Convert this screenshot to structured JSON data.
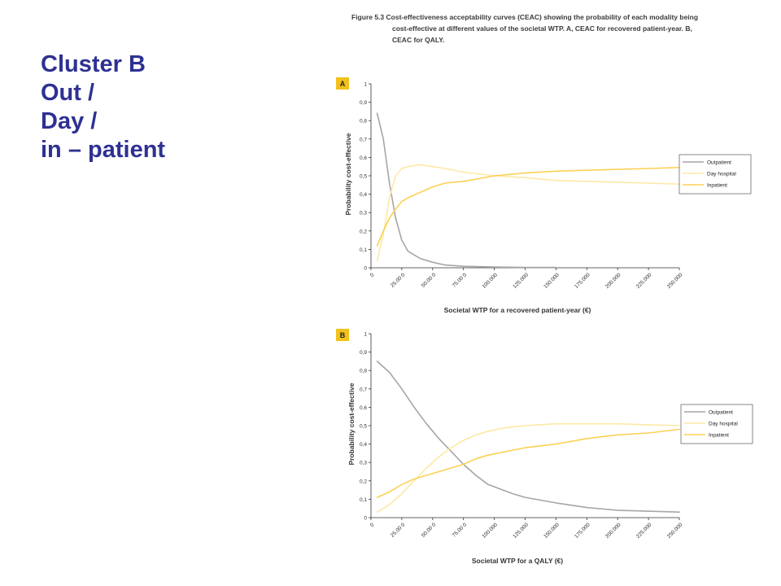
{
  "slide": {
    "title_lines": [
      "Cluster B",
      "Out /",
      "Day /",
      "in – patient"
    ]
  },
  "figure": {
    "label": "Figure 5.3",
    "caption_line1": "Cost-effectiveness acceptability curves (CEAC) showing the probability of each modality being",
    "caption_line2": "cost-effective at different values of the societal WTP. A, CEAC for recovered patient-year. B,",
    "caption_line3": "CEAC for QALY."
  },
  "colors": {
    "title": "#2e3192",
    "outpatient": "#a6a6a6",
    "day_hospital": "#fde9a6",
    "inpatient": "#fcd054",
    "panel_badge": "#f2c11b",
    "axis": "#333333"
  },
  "chart_data": [
    {
      "type": "line",
      "panel": "A",
      "ylabel": "Probability cost-effective",
      "xlabel": "Societal WTP for a recovered patient-year (€)",
      "yticks": [
        "0",
        "0,1",
        "0,2",
        "0,3",
        "0,4",
        "0,5",
        "0,6",
        "0,7",
        "0,8",
        "0,9",
        "1"
      ],
      "xticks": [
        "0",
        "25.00 0",
        "50.00 0",
        "75.00 0",
        "100.000",
        "125.000",
        "150.000",
        "175.000",
        "200.000",
        "225.000",
        "250.000"
      ],
      "ylim": [
        0,
        1
      ],
      "xlim": [
        0,
        250000
      ],
      "legend_position": "right",
      "series": [
        {
          "name": "Outpatient",
          "color": "#a6a6a6",
          "x": [
            5000,
            10000,
            15000,
            20000,
            25000,
            30000,
            40000,
            50000,
            60000,
            75000,
            100000,
            125000,
            150000
          ],
          "y": [
            0.84,
            0.7,
            0.46,
            0.27,
            0.15,
            0.09,
            0.05,
            0.03,
            0.015,
            0.008,
            0.004,
            0.002,
            0.002
          ]
        },
        {
          "name": "Day hospital",
          "color": "#fde9a6",
          "x": [
            5000,
            10000,
            15000,
            20000,
            25000,
            30000,
            40000,
            50000,
            60000,
            75000,
            100000,
            125000,
            150000,
            175000,
            200000,
            225000,
            250000
          ],
          "y": [
            0.04,
            0.18,
            0.38,
            0.5,
            0.54,
            0.55,
            0.56,
            0.55,
            0.54,
            0.52,
            0.5,
            0.49,
            0.475,
            0.47,
            0.465,
            0.46,
            0.455
          ]
        },
        {
          "name": "Inpatient",
          "color": "#fcd054",
          "x": [
            5000,
            10000,
            15000,
            20000,
            25000,
            30000,
            40000,
            50000,
            60000,
            75000,
            100000,
            125000,
            150000,
            175000,
            200000,
            225000,
            250000
          ],
          "y": [
            0.12,
            0.2,
            0.27,
            0.32,
            0.36,
            0.38,
            0.41,
            0.44,
            0.46,
            0.47,
            0.5,
            0.515,
            0.525,
            0.53,
            0.535,
            0.54,
            0.545
          ]
        }
      ]
    },
    {
      "type": "line",
      "panel": "B",
      "ylabel": "Probability cost-effective",
      "xlabel": "Societal WTP for a QALY (€)",
      "yticks": [
        "0",
        "0,1",
        "0,2",
        "0,3",
        "0,4",
        "0,5",
        "0,6",
        "0,7",
        "0,8",
        "0,9",
        "1"
      ],
      "xticks": [
        "0",
        "25.00 0",
        "50.00 0",
        "75.00 0",
        "100.000",
        "125.000",
        "150.000",
        "175.000",
        "200.000",
        "225.000",
        "250.000"
      ],
      "ylim": [
        0,
        1
      ],
      "xlim": [
        0,
        250000
      ],
      "legend_position": "right",
      "series": [
        {
          "name": "Outpatient",
          "color": "#a6a6a6",
          "x": [
            5000,
            15000,
            25000,
            35000,
            45000,
            55000,
            65000,
            75000,
            85000,
            95000,
            105000,
            115000,
            125000,
            150000,
            175000,
            200000,
            225000,
            250000
          ],
          "y": [
            0.85,
            0.79,
            0.7,
            0.6,
            0.51,
            0.43,
            0.36,
            0.29,
            0.23,
            0.18,
            0.155,
            0.13,
            0.11,
            0.08,
            0.055,
            0.04,
            0.035,
            0.03
          ]
        },
        {
          "name": "Day hospital",
          "color": "#fde9a6",
          "x": [
            5000,
            15000,
            25000,
            35000,
            45000,
            55000,
            65000,
            75000,
            85000,
            95000,
            110000,
            125000,
            150000,
            175000,
            200000,
            225000,
            250000
          ],
          "y": [
            0.03,
            0.07,
            0.13,
            0.2,
            0.27,
            0.33,
            0.38,
            0.42,
            0.45,
            0.47,
            0.49,
            0.5,
            0.51,
            0.51,
            0.51,
            0.505,
            0.5
          ]
        },
        {
          "name": "Inpatient",
          "color": "#fcd054",
          "x": [
            5000,
            15000,
            25000,
            35000,
            45000,
            55000,
            65000,
            75000,
            85000,
            95000,
            110000,
            125000,
            150000,
            175000,
            200000,
            225000,
            250000
          ],
          "y": [
            0.11,
            0.14,
            0.18,
            0.21,
            0.23,
            0.25,
            0.27,
            0.29,
            0.32,
            0.34,
            0.36,
            0.38,
            0.4,
            0.43,
            0.45,
            0.46,
            0.48
          ]
        }
      ]
    }
  ]
}
